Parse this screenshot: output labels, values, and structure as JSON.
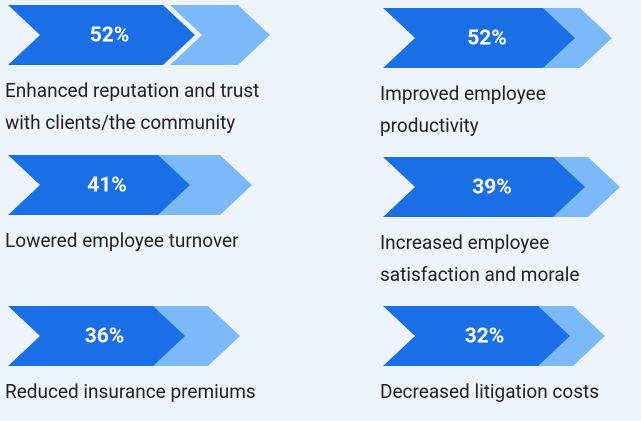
{
  "items": [
    {
      "value": "52%",
      "label": [
        "Enhanced reputation and trust",
        "with clients/the community"
      ]
    },
    {
      "value": "52%",
      "label": [
        "Improved employee",
        "productivity"
      ]
    },
    {
      "value": "41%",
      "label": [
        "Lowered employee turnover"
      ]
    },
    {
      "value": "39%",
      "label": [
        "Increased employee",
        "satisfaction and morale"
      ]
    },
    {
      "value": "36%",
      "label": [
        "Reduced insurance premiums"
      ]
    },
    {
      "value": "32%",
      "label": [
        "Decreased litigation costs"
      ]
    }
  ]
}
